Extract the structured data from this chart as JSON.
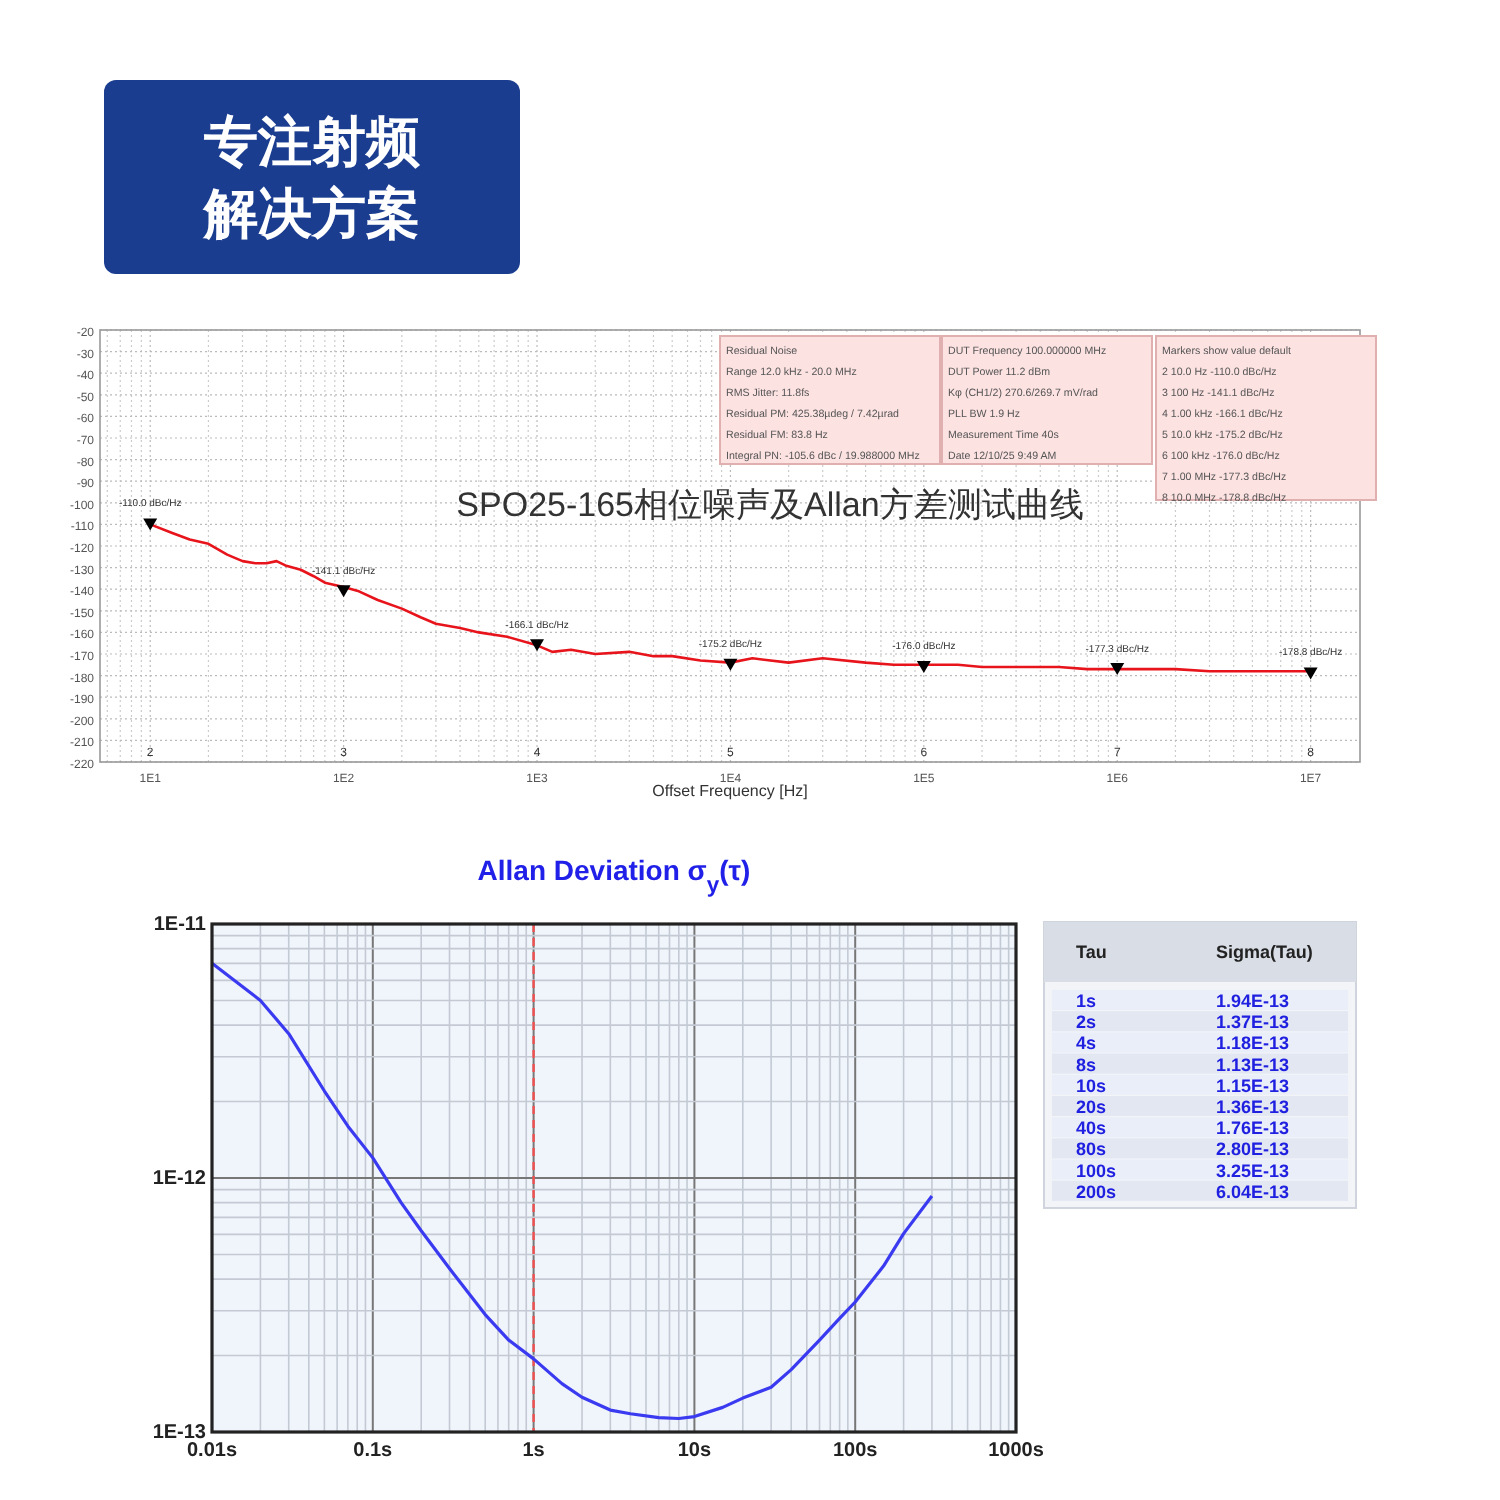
{
  "chart_data": [
    {
      "type": "other",
      "annotations": [
        "专注射频",
        "解决方案"
      ]
    },
    {
      "type": "line",
      "title": "SPO25-165相位噪声及Allan方差测试曲线",
      "xlabel": "Offset Frequency [Hz]",
      "log": "x",
      "grid": true,
      "xlim": [
        5.5,
        18000000
      ],
      "ylim": [
        -220,
        -20
      ],
      "xticks": [
        {
          "value": 10,
          "label": "1E1"
        },
        {
          "value": 100,
          "label": "1E2"
        },
        {
          "value": 1000,
          "label": "1E3"
        },
        {
          "value": 10000,
          "label": "1E4"
        },
        {
          "value": 100000,
          "label": "1E5"
        },
        {
          "value": 1000000,
          "label": "1E6"
        },
        {
          "value": 10000000,
          "label": "1E7"
        }
      ],
      "yticks": [
        -20,
        -30,
        -40,
        -50,
        -60,
        -70,
        -80,
        -90,
        -100,
        -110,
        -120,
        -130,
        -140,
        -150,
        -160,
        -170,
        -180,
        -190,
        -200,
        -210,
        -220
      ],
      "series": [
        {
          "color": "#e8141c",
          "x": [
            10,
            13,
            16,
            20,
            25,
            30,
            35,
            40,
            45,
            50,
            60,
            70,
            80,
            100,
            120,
            150,
            200,
            250,
            300,
            400,
            500,
            700,
            1000,
            1200,
            1500,
            2000,
            3000,
            4000,
            5000,
            7000,
            10000,
            13000,
            20000,
            30000,
            50000,
            70000,
            100000,
            150000,
            200000,
            300000,
            500000,
            700000,
            1000000,
            2000000,
            3000000,
            5000000,
            10000000
          ],
          "values": [
            -110,
            -114,
            -117,
            -119,
            -124,
            -127,
            -128,
            -128,
            -127,
            -129,
            -131,
            -134,
            -137,
            -139,
            -141,
            -145,
            -149,
            -153,
            -156,
            -158,
            -160,
            -162,
            -166,
            -169,
            -168,
            -170,
            -169,
            -171,
            -171,
            -173,
            -174,
            -172,
            -174,
            -172,
            -174,
            -175,
            -175,
            -175,
            -176,
            -176,
            -176,
            -177,
            -177,
            -177,
            -178,
            -178,
            -178
          ]
        },
        {
          "type": "scatter",
          "marker": "triangle",
          "color": "#000000",
          "x": [
            10,
            100,
            1000,
            10000,
            100000,
            1000000,
            10000000
          ],
          "values": [
            -110,
            -141,
            -166,
            -175,
            -176,
            -177,
            -179
          ]
        }
      ],
      "annotations": [
        {
          "text": "-110.0 dBc/Hz",
          "x": 10,
          "y": -110
        },
        {
          "text": "-141.1 dBc/Hz",
          "x": 100,
          "y": -141.1
        },
        {
          "text": "-166.1 dBc/Hz",
          "x": 1000,
          "y": -166.1
        },
        {
          "text": "-175.2 dBc/Hz",
          "x": 10000,
          "y": -175.2
        },
        {
          "text": "-176.0 dBc/Hz",
          "x": 100000,
          "y": -176
        },
        {
          "text": "-177.3 dBc/Hz",
          "x": 1000000,
          "y": -177.3
        },
        {
          "text": "-178.8 dBc/Hz",
          "x": 10000000,
          "y": -178.8
        },
        "2",
        "3",
        "4",
        "5",
        "6",
        "7",
        "8"
      ]
    },
    {
      "type": "other",
      "title": "Residual Noise",
      "annotations": [
        "Range 12.0 kHz - 20.0 MHz",
        "RMS Jitter: 11.8fs",
        "Residual PM: 425.38µdeg / 7.42µrad",
        "Residual FM: 83.8 Hz",
        "Integral PN: -105.6 dBc / 19.988000 MHz"
      ]
    },
    {
      "type": "other",
      "title": "DUT Frequency 100.000000 MHz",
      "annotations": [
        "DUT Power 11.2 dBm",
        "Kφ (CH1/2) 270.6/269.7 mV/rad",
        "PLL BW 1.9 Hz",
        "Measurement Time 40s",
        "Date 12/10/25 9:49 AM"
      ]
    },
    {
      "type": "other",
      "title": "Markers show value default",
      "annotations": [
        "2 10.0 Hz -110.0 dBc/Hz",
        "3 100 Hz -141.1 dBc/Hz",
        "4 1.00 kHz -166.1 dBc/Hz",
        "5 10.0 kHz -175.2 dBc/Hz",
        "6 100 kHz -176.0 dBc/Hz",
        "7 1.00 MHz -177.3 dBc/Hz",
        "8 10.0 MHz -178.8 dBc/Hz"
      ]
    },
    {
      "type": "line",
      "title": "Allan Deviation σ$_{y}$(τ)",
      "log": "xy",
      "grid": true,
      "xlim": [
        0.01,
        1000
      ],
      "ylim": [
        1e-13,
        1e-11
      ],
      "xticks": [
        {
          "value": 0.01,
          "label": "0.01s"
        },
        {
          "value": 0.1,
          "label": "0.1s"
        },
        {
          "value": 1,
          "label": "1s"
        },
        {
          "value": 10,
          "label": "10s"
        },
        {
          "value": 100,
          "label": "100s"
        },
        {
          "value": 1000,
          "label": "1000s"
        }
      ],
      "yticks": [
        {
          "value": 1e-13,
          "label": "1E-13"
        },
        {
          "value": 1e-12,
          "label": "1E-12"
        },
        {
          "value": 1e-11,
          "label": "1E-11"
        }
      ],
      "ref_lines": [
        {
          "axis": "x",
          "value": 1,
          "color": "#f05050",
          "line_style": "dashed"
        }
      ],
      "series": [
        {
          "color": "#3a3af0",
          "x": [
            0.01,
            0.02,
            0.03,
            0.05,
            0.07,
            0.1,
            0.15,
            0.2,
            0.3,
            0.5,
            0.7,
            1,
            1.5,
            2,
            3,
            4,
            6,
            8,
            10,
            15,
            20,
            30,
            40,
            60,
            80,
            100,
            150,
            200,
            300
          ],
          "values": [
            7e-12,
            5e-12,
            3.7e-12,
            2.2e-12,
            1.6e-12,
            1.2e-12,
            8e-13,
            6.2e-13,
            4.4e-13,
            2.9e-13,
            2.3e-13,
            1.94e-13,
            1.55e-13,
            1.37e-13,
            1.22e-13,
            1.18e-13,
            1.14e-13,
            1.13e-13,
            1.15e-13,
            1.25e-13,
            1.36e-13,
            1.5e-13,
            1.76e-13,
            2.3e-13,
            2.8e-13,
            3.25e-13,
            4.5e-13,
            6.04e-13,
            8.5e-13
          ]
        }
      ]
    },
    {
      "type": "other",
      "annotations": [
        "Tau",
        "Sigma(Tau)"
      ],
      "categories": [
        "1s",
        "2s",
        "4s",
        "8s",
        "10s",
        "20s",
        "40s",
        "80s",
        "100s",
        "200s"
      ],
      "value_labels": [
        "1.94E-13",
        "1.37E-13",
        "1.18E-13",
        "1.13E-13",
        "1.15E-13",
        "1.36E-13",
        "1.76E-13",
        "2.80E-13",
        "3.25E-13",
        "6.04E-13"
      ]
    }
  ]
}
